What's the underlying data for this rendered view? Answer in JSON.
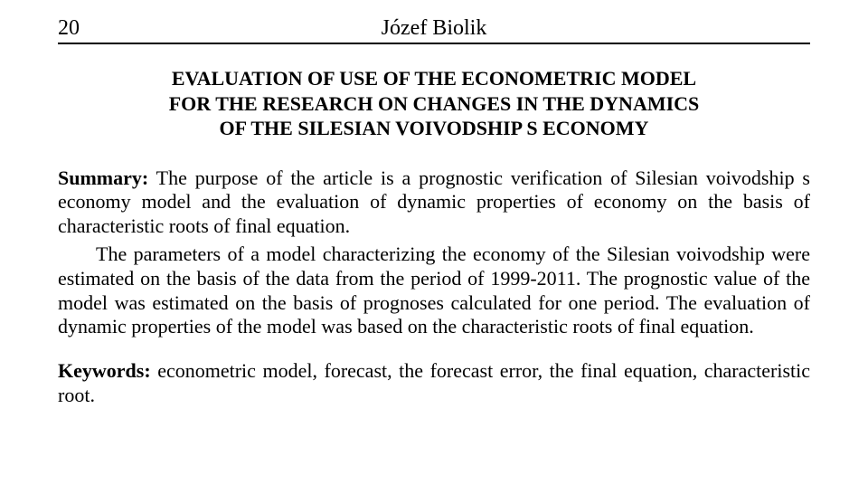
{
  "header": {
    "page_number": "20",
    "author": "Józef Biolik"
  },
  "title": {
    "line1": "EVALUATION OF USE OF THE ECONOMETRIC MODEL",
    "line2": "FOR THE RESEARCH ON CHANGES IN THE DYNAMICS",
    "line3": "OF THE SILESIAN VOIVODSHIP S ECONOMY"
  },
  "summary": {
    "label": "Summary:",
    "para1_rest": " The purpose of the article is a prognostic verification of Silesian voivodship s economy model and the evaluation of dynamic properties of economy on the basis of characteristic roots of final equation.",
    "para2": "The parameters of a model characterizing the economy of the Silesian voivodship were estimated on the basis of the data from the period of 1999-2011. The prognostic value of the model was estimated on the basis of prognoses calculated for one period. The evaluation of dynamic properties of the model was based on the characteristic roots of final equation."
  },
  "keywords": {
    "label": "Keywords:",
    "text": " econometric model, forecast, the forecast error, the final equation, characteristic root."
  }
}
